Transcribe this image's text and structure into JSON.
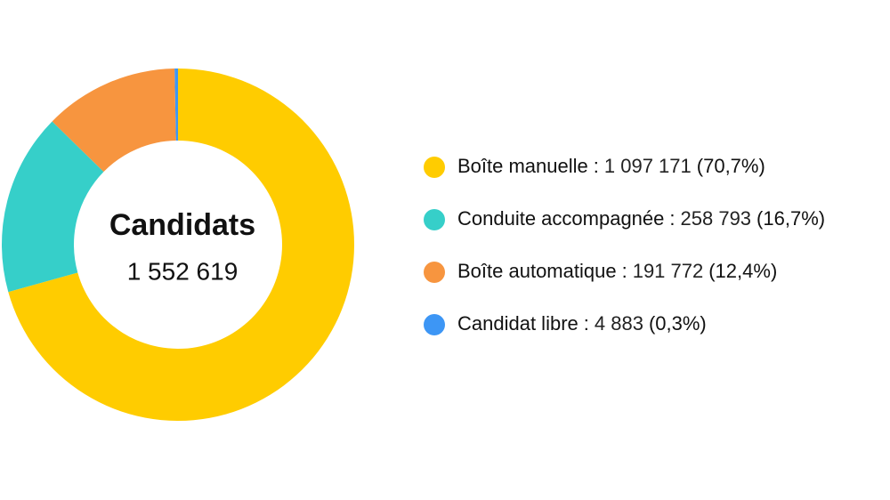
{
  "chart_data": {
    "type": "donut",
    "title": "Candidats",
    "total": {
      "value": 1552619,
      "label": "1 552 619"
    },
    "categories": [
      "Boîte manuelle",
      "Conduite accompagnée",
      "Boîte automatique",
      "Candidat libre"
    ],
    "values": [
      1097171,
      258793,
      191772,
      4883
    ],
    "value_labels": [
      "1 097 171",
      "258 793",
      "191 772",
      "4 883"
    ],
    "percents": [
      {
        "value": 70.7,
        "label": "(70,7%)"
      },
      {
        "value": 16.7,
        "label": "(16,7%)"
      },
      {
        "value": 12.4,
        "label": "(12,4%)"
      },
      {
        "value": 0.3,
        "label": "(0,3%)"
      }
    ],
    "legend_separator": ":",
    "colors": [
      "#FFCC00",
      "#36CFC9",
      "#F7953F",
      "#3D96F5"
    ]
  }
}
